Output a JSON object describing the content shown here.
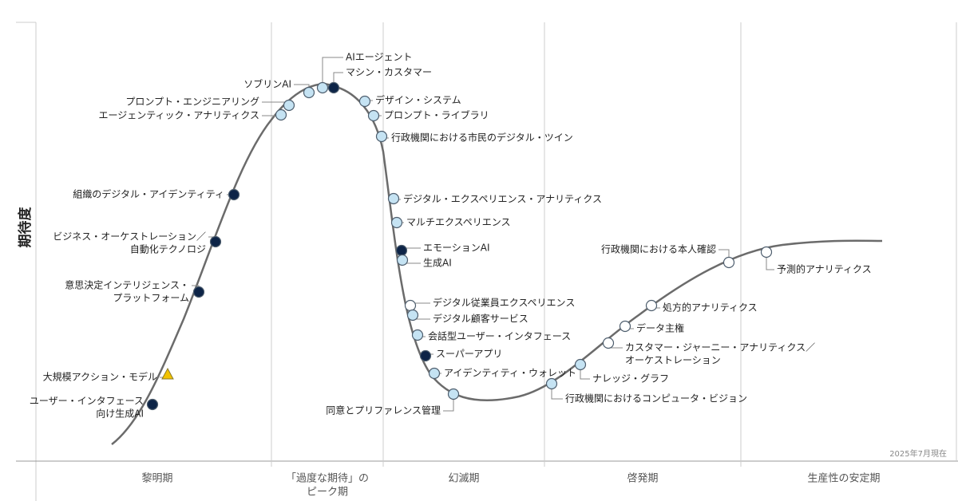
{
  "y_axis_label": "期待度",
  "date_note": "2025年7月現在",
  "phases": [
    [
      "黎明期"
    ],
    [
      "「過度な期待」の",
      "ピーク期"
    ],
    [
      "幻滅期"
    ],
    [
      "啓発期"
    ],
    [
      "生産性の安定期"
    ]
  ],
  "nodes": [
    {
      "label": [
        "ユーザー・インタフェース",
        "向け生成AI"
      ],
      "color": "#0d2447"
    },
    {
      "label": [
        "大規模アクション・モデル"
      ],
      "color": "#f2c200",
      "shape": "triangle"
    },
    {
      "label": [
        "意思決定インテリジェンス・",
        "プラットフォーム"
      ],
      "color": "#0d2447"
    },
    {
      "label": [
        "ビジネス・オーケストレーション／",
        "自動化テクノロジ"
      ],
      "color": "#0d2447"
    },
    {
      "label": [
        "組織のデジタル・アイデンティティ"
      ],
      "color": "#0d2447"
    },
    {
      "label": [
        "エージェンティック・アナリティクス"
      ],
      "color": "#c5e3f3"
    },
    {
      "label": [
        "プロンプト・エンジニアリング"
      ],
      "color": "#c5e3f3"
    },
    {
      "label": [
        "ソブリンAI"
      ],
      "color": "#c5e3f3"
    },
    {
      "label": [
        "AIエージェント"
      ],
      "color": "#c5e3f3"
    },
    {
      "label": [
        "マシン・カスタマー"
      ],
      "color": "#0d2447"
    },
    {
      "label": [
        "デザイン・システム"
      ],
      "color": "#c5e3f3"
    },
    {
      "label": [
        "プロンプト・ライブラリ"
      ],
      "color": "#c5e3f3"
    },
    {
      "label": [
        "行政機関における市民のデジタル・ツイン"
      ],
      "color": "#c5e3f3"
    },
    {
      "label": [
        "デジタル・エクスペリエンス・アナリティクス"
      ],
      "color": "#c5e3f3"
    },
    {
      "label": [
        "マルチエクスペリエンス"
      ],
      "color": "#c5e3f3"
    },
    {
      "label": [
        "エモーションAI"
      ],
      "color": "#0d2447"
    },
    {
      "label": [
        "生成AI"
      ],
      "color": "#c5e3f3"
    },
    {
      "label": [
        "デジタル従業員エクスペリエンス"
      ],
      "color": "#ffffff"
    },
    {
      "label": [
        "デジタル顧客サービス"
      ],
      "color": "#c5e3f3"
    },
    {
      "label": [
        "会話型ユーザー・インタフェース"
      ],
      "color": "#c5e3f3"
    },
    {
      "label": [
        "スーパーアプリ"
      ],
      "color": "#0d2447"
    },
    {
      "label": [
        "アイデンティティ・ウォレット"
      ],
      "color": "#c5e3f3"
    },
    {
      "label": [
        "同意とプリファレンス管理"
      ],
      "color": "#c5e3f3"
    },
    {
      "label": [
        "行政機関におけるコンピュータ・ビジョン"
      ],
      "color": "#c5e3f3"
    },
    {
      "label": [
        "ナレッジ・グラフ"
      ],
      "color": "#c5e3f3"
    },
    {
      "label": [
        "カスタマー・ジャーニー・アナリティクス／",
        "オーケストレーション"
      ],
      "color": "#ffffff"
    },
    {
      "label": [
        "データ主権"
      ],
      "color": "#ffffff"
    },
    {
      "label": [
        "処方的アナリティクス"
      ],
      "color": "#ffffff"
    },
    {
      "label": [
        "行政機関における本人確認"
      ],
      "color": "#ffffff"
    },
    {
      "label": [
        "予測的アナリティクス"
      ],
      "color": "#ffffff"
    }
  ]
}
